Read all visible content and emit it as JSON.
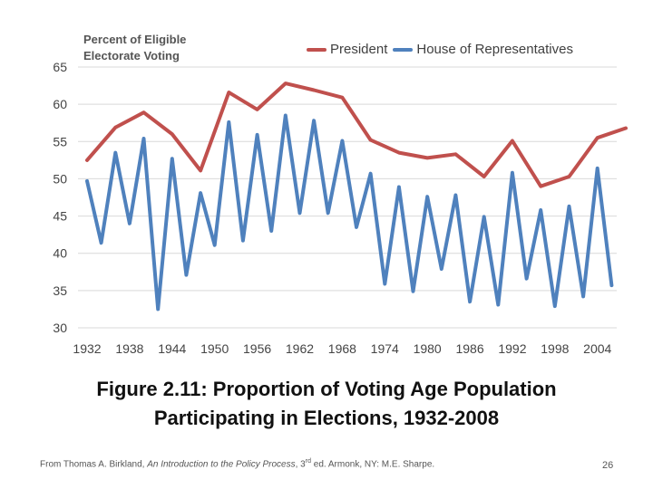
{
  "chart_data": {
    "type": "line",
    "ylabel_lines": [
      "Percent of Eligible",
      "Electorate Voting"
    ],
    "xlabel": "",
    "ylim": [
      30,
      65
    ],
    "yticks": [
      30,
      35,
      40,
      45,
      50,
      55,
      60,
      65
    ],
    "xlim": [
      1932,
      2008
    ],
    "xticks": [
      1932,
      1938,
      1944,
      1950,
      1956,
      1962,
      1968,
      1974,
      1980,
      1986,
      1992,
      1998,
      2004
    ],
    "grid": true,
    "legend_position": "top-right",
    "series": [
      {
        "name": "President",
        "color": "#c0504d",
        "x": [
          1932,
          1936,
          1940,
          1944,
          1948,
          1952,
          1956,
          1960,
          1964,
          1968,
          1972,
          1976,
          1980,
          1984,
          1988,
          1992,
          1996,
          2000,
          2004,
          2008
        ],
        "values": [
          52.5,
          56.9,
          58.9,
          56.0,
          51.1,
          61.6,
          59.3,
          62.8,
          61.9,
          60.9,
          55.2,
          53.5,
          52.8,
          53.3,
          50.3,
          55.1,
          49.0,
          50.3,
          55.5,
          56.8
        ]
      },
      {
        "name": "House of Representatives",
        "color": "#4f81bd",
        "x": [
          1932,
          1934,
          1936,
          1938,
          1940,
          1942,
          1944,
          1946,
          1948,
          1950,
          1952,
          1954,
          1956,
          1958,
          1960,
          1962,
          1964,
          1966,
          1968,
          1970,
          1972,
          1974,
          1976,
          1978,
          1980,
          1982,
          1984,
          1986,
          1988,
          1990,
          1992,
          1994,
          1996,
          1998,
          2000,
          2002,
          2004,
          2006
        ],
        "values": [
          49.7,
          41.4,
          53.5,
          44.0,
          55.4,
          32.5,
          52.7,
          37.1,
          48.1,
          41.1,
          57.6,
          41.7,
          55.9,
          43.0,
          58.5,
          45.4,
          57.8,
          45.4,
          55.1,
          43.5,
          50.7,
          35.9,
          48.9,
          34.9,
          47.6,
          37.9,
          47.8,
          33.5,
          44.9,
          33.1,
          50.8,
          36.6,
          45.8,
          32.9,
          46.3,
          34.2,
          51.4,
          35.7
        ]
      }
    ]
  },
  "caption": {
    "line1": "Figure 2.11: Proportion of Voting Age Population",
    "line2": "Participating in Elections, 1932-2008"
  },
  "citation": {
    "prefix": "From Thomas A. Birkland, ",
    "title_italic": "An Introduction to the Policy Process",
    "edition_number": ", 3",
    "edition_suffix": "rd",
    "suffix": " ed. Armonk, NY: M.E. Sharpe."
  },
  "slide_number": "26"
}
